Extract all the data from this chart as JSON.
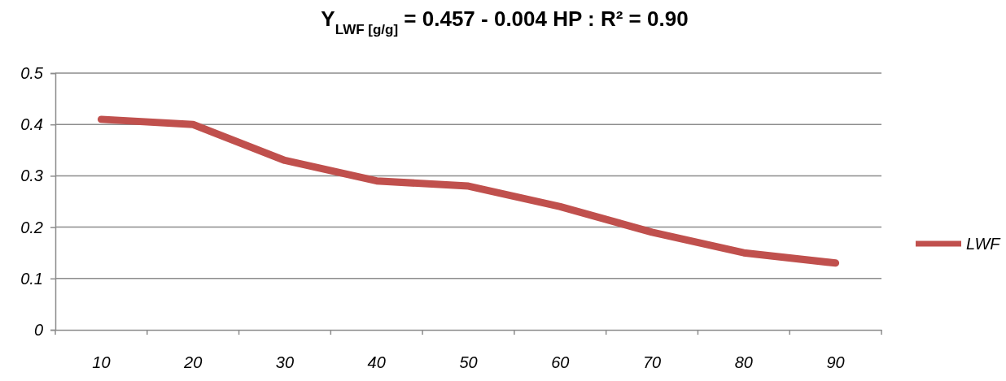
{
  "chart_data": {
    "type": "line",
    "title": "Y$_{LWF [g/g]}$ =   0.457 -  0.004 HP  :  R² = 0.90",
    "categories": [
      "10",
      "20",
      "30",
      "40",
      "50",
      "60",
      "70",
      "80",
      "90"
    ],
    "series": [
      {
        "name": "LWF",
        "color": "#c0504d",
        "values": [
          0.41,
          0.4,
          0.33,
          0.29,
          0.28,
          0.24,
          0.19,
          0.15,
          0.13
        ]
      }
    ],
    "ylim": [
      0,
      0.5
    ],
    "yticks": [
      0,
      0.1,
      0.2,
      0.3,
      0.4,
      0.5
    ],
    "grid": "y",
    "legend": "right",
    "marker": "none",
    "line_style": "solid"
  }
}
